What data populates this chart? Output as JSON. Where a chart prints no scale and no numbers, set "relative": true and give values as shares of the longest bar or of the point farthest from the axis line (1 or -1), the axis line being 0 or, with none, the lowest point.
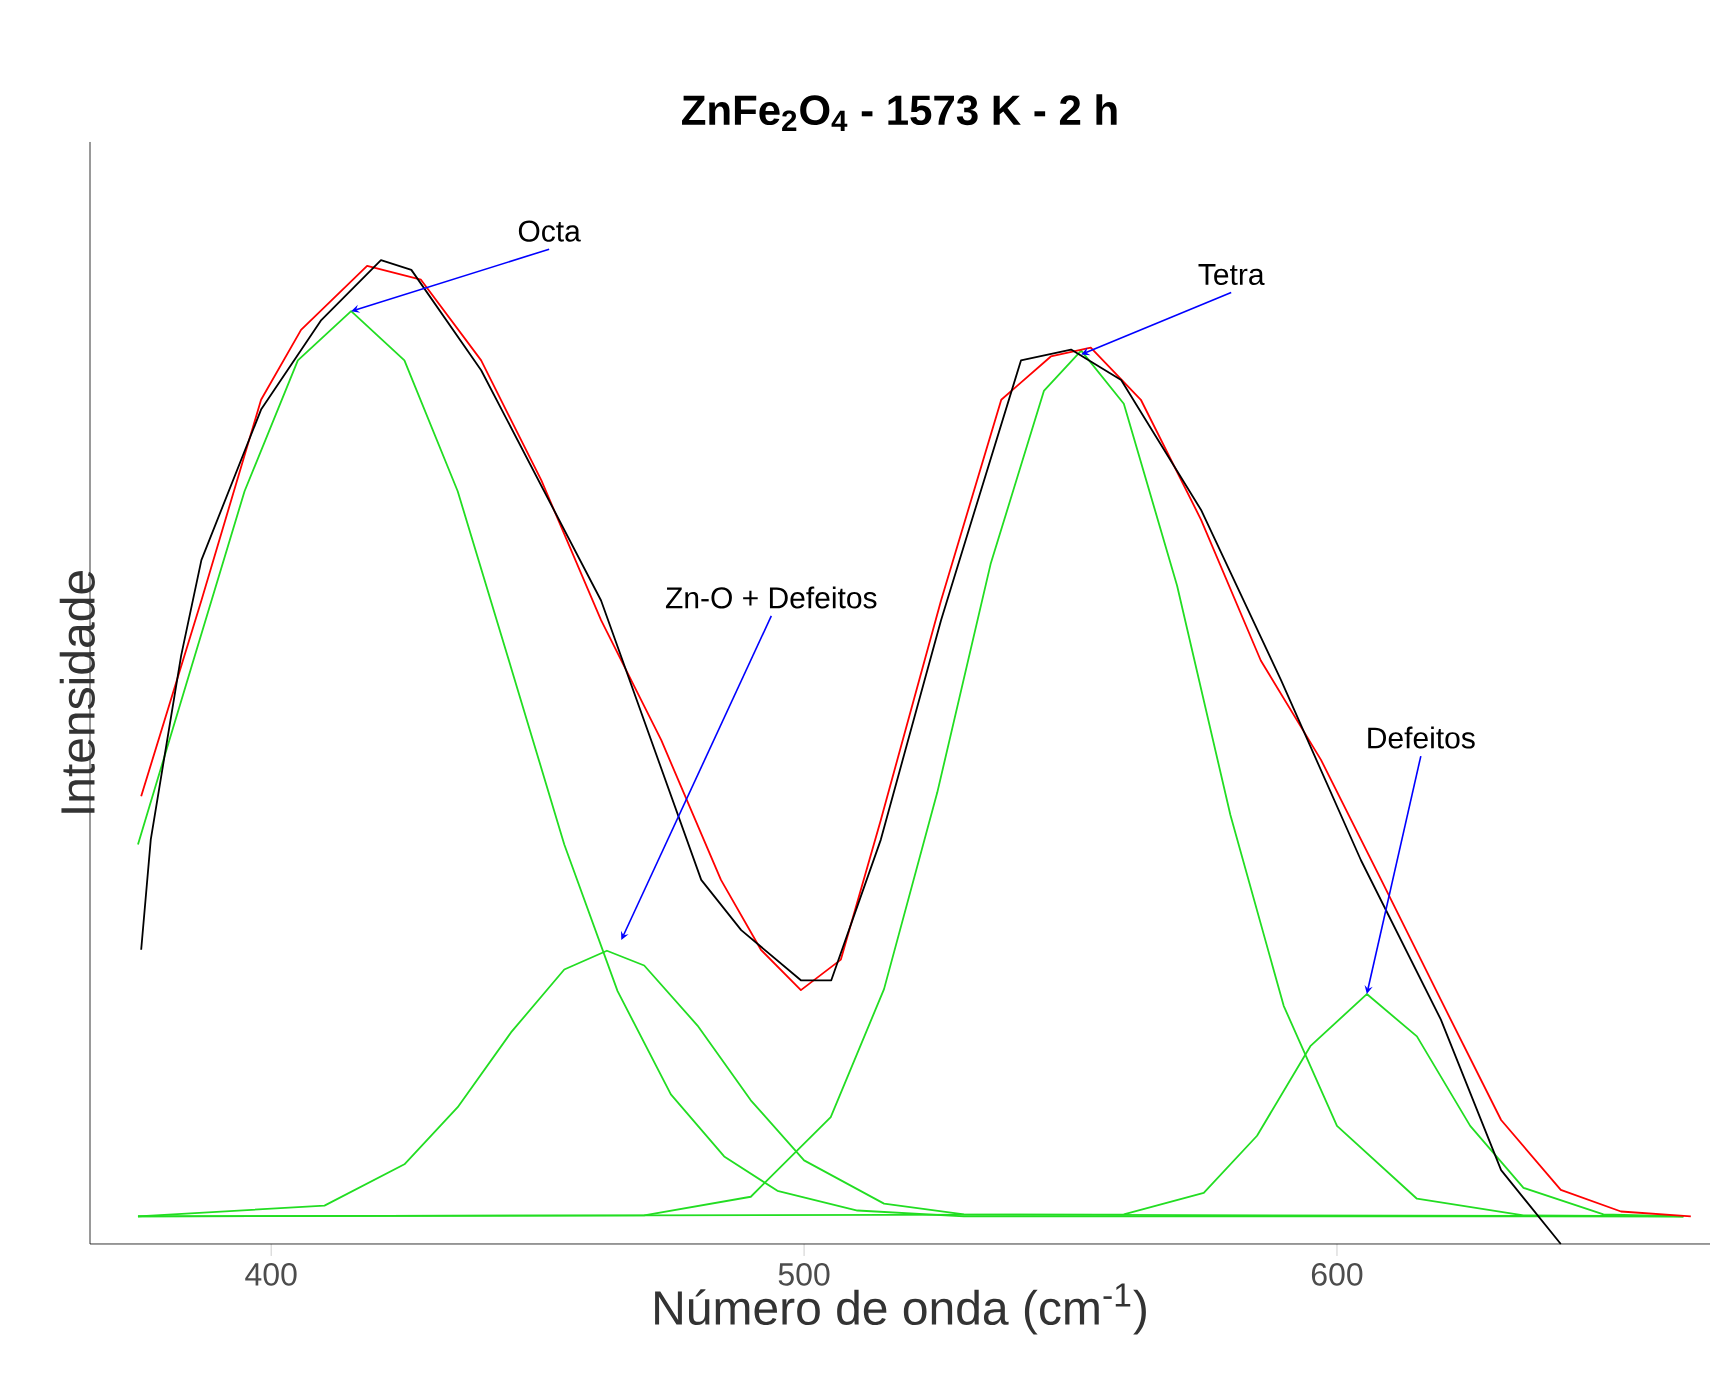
{
  "chart_data": {
    "type": "line",
    "title": "ZnFe$_{2}$O$_{4}$ - 1573 K - 2 h",
    "xlabel": "Número de onda (cm$^{-1}$)",
    "ylabel": "Intensidade",
    "relative": true,
    "xlim": [
      366,
      670
    ],
    "xticks": [
      400,
      500,
      600
    ],
    "tick_labels": "x",
    "marker": "none",
    "series": [
      {
        "color": "#22dd22",
        "x": [
          375,
          385,
          395,
          405,
          415,
          425,
          435,
          445,
          455,
          465,
          475,
          485,
          495,
          510,
          530,
          665
        ],
        "values": [
          0.406,
          0.586,
          0.765,
          0.898,
          0.948,
          0.898,
          0.765,
          0.586,
          0.406,
          0.257,
          0.152,
          0.089,
          0.054,
          0.034,
          0.028,
          0.028
        ]
      },
      {
        "color": "#22dd22",
        "x": [
          375,
          410,
          425,
          435,
          445,
          455,
          463,
          470,
          480,
          490,
          500,
          515,
          530,
          665
        ],
        "values": [
          0.028,
          0.039,
          0.081,
          0.139,
          0.215,
          0.279,
          0.298,
          0.283,
          0.222,
          0.146,
          0.085,
          0.041,
          0.03,
          0.028
        ]
      },
      {
        "color": "#22dd22",
        "x": [
          375,
          470,
          490,
          505,
          515,
          525,
          535,
          545,
          552,
          560,
          570,
          580,
          590,
          600,
          615,
          635,
          665
        ],
        "values": [
          0.028,
          0.029,
          0.048,
          0.129,
          0.259,
          0.459,
          0.691,
          0.867,
          0.908,
          0.854,
          0.669,
          0.436,
          0.242,
          0.12,
          0.046,
          0.029,
          0.028
        ]
      },
      {
        "color": "#22dd22",
        "x": [
          375,
          560,
          575,
          585,
          595,
          605.6,
          615,
          625,
          635,
          650,
          665
        ],
        "values": [
          0.028,
          0.03,
          0.052,
          0.11,
          0.201,
          0.254,
          0.211,
          0.12,
          0.057,
          0.03,
          0.028
        ]
      },
      {
        "color": "#ff0000",
        "x": [
          375.6,
          386.9,
          398.1,
          405.6,
          418.0,
          428.1,
          439.4,
          450.7,
          461.9,
          473.2,
          484.4,
          491.9,
          499.4,
          506.9,
          514.4,
          525.7,
          537.0,
          546.3,
          553.8,
          563.2,
          574.5,
          585.7,
          597.0,
          608.3,
          619.5,
          630.8,
          642.0,
          653.3,
          666.4
        ],
        "values": [
          0.455,
          0.654,
          0.858,
          0.929,
          0.994,
          0.98,
          0.898,
          0.776,
          0.634,
          0.512,
          0.37,
          0.299,
          0.258,
          0.289,
          0.431,
          0.654,
          0.858,
          0.902,
          0.911,
          0.858,
          0.736,
          0.593,
          0.492,
          0.37,
          0.248,
          0.126,
          0.055,
          0.033,
          0.028
        ]
      },
      {
        "color": "#000000",
        "x": [
          375.6,
          377.4,
          383.1,
          386.9,
          398.1,
          409.4,
          420.6,
          426.3,
          439.4,
          461.9,
          480.7,
          488.2,
          499.4,
          505.1,
          514.4,
          525.7,
          540.7,
          550.1,
          559.5,
          574.5,
          589.5,
          604.5,
          619.5,
          630.8,
          642.0
        ],
        "values": [
          0.299,
          0.411,
          0.598,
          0.695,
          0.848,
          0.939,
          1.0,
          0.99,
          0.888,
          0.654,
          0.37,
          0.319,
          0.268,
          0.268,
          0.411,
          0.634,
          0.898,
          0.909,
          0.878,
          0.746,
          0.573,
          0.39,
          0.228,
          0.075,
          0.0
        ]
      }
    ],
    "annotations": [
      {
        "text": "Octa",
        "x": 415,
        "y": 0.948
      },
      {
        "text": "Zn-O + Defeitos",
        "x": 465.7,
        "y": 0.309
      },
      {
        "text": "Tetra",
        "x": 552,
        "y": 0.904
      },
      {
        "text": "Defeitos",
        "x": 605.6,
        "y": 0.254
      }
    ]
  }
}
